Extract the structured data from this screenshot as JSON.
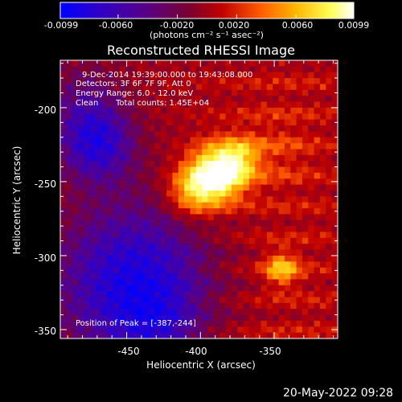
{
  "chart_data": {
    "type": "heatmap",
    "title": "Reconstructed RHESSI Image",
    "xlabel": "Heliocentric X (arcsec)",
    "ylabel": "Heliocentric Y (arcsec)",
    "xlim": [
      -495,
      -307
    ],
    "ylim": [
      -356,
      -168
    ],
    "xticks": [
      -450,
      -400,
      -350
    ],
    "yticks": [
      -200,
      -250,
      -300,
      -350
    ],
    "colorbar": {
      "range": [
        -0.0099,
        0.0099
      ],
      "ticks": [
        "-0.0099",
        "-0.0060",
        "-0.0020",
        "0.0020",
        "0.0060",
        "0.0099"
      ],
      "tick_values": [
        -0.0099,
        -0.006,
        -0.002,
        0.002,
        0.006,
        0.0099
      ],
      "unit_label": "(photons cm⁻² s⁻¹ asec⁻²)",
      "colormap": [
        "#0000ff",
        "#2b00cc",
        "#55008c",
        "#7a0030",
        "#c00000",
        "#ff5a00",
        "#ffb400",
        "#ffff55",
        "#ffffff"
      ]
    },
    "peak": {
      "x": -387,
      "y": -244
    },
    "annotations": {
      "time_range": "9-Dec-2014 19:39:00.000 to 19:43:08.000",
      "detectors": "Detectors: 3F 6F 7F 9F, Att 0",
      "energy": "Energy Range: 6.0 - 12.0 keV",
      "method": "Clean",
      "counts": "Total counts: 1.45E+04",
      "peak_label": "Position of Peak = [-387,-244]"
    }
  },
  "footer_date": "20-May-2022 09:28"
}
